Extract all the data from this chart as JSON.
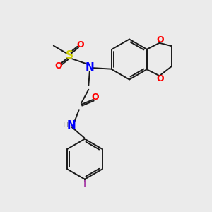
{
  "background_color": "#ebebeb",
  "figsize": [
    3.0,
    3.0
  ],
  "dpi": 100,
  "colors": {
    "black": "#1a1a1a",
    "blue": "#0000FF",
    "red": "#FF0000",
    "yellow_s": "#CCCC00",
    "purple_i": "#AA44AA",
    "gray_h": "#808080"
  },
  "lw": 1.4,
  "xlim": [
    0,
    10
  ],
  "ylim": [
    0,
    10
  ]
}
